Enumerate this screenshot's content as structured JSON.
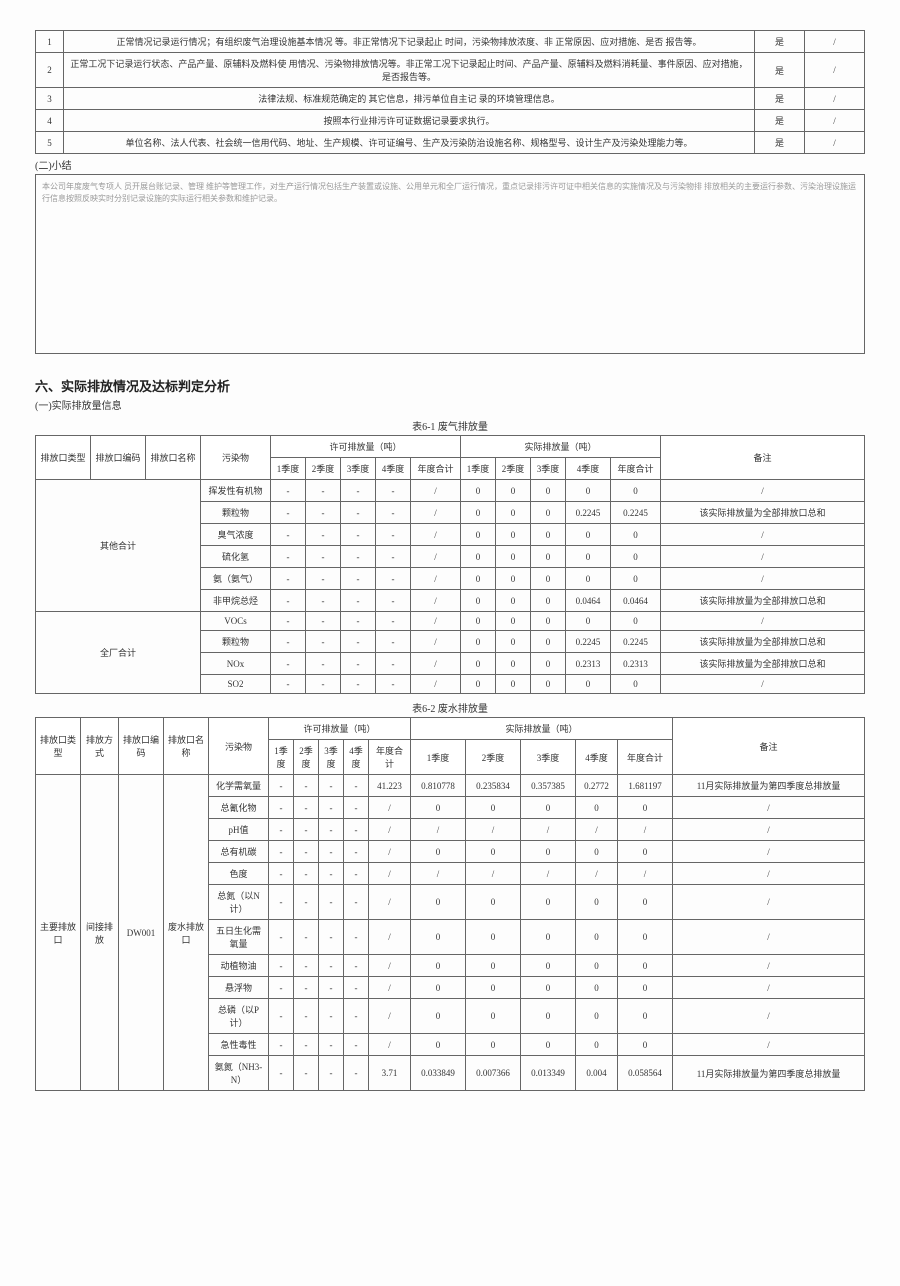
{
  "topTable": {
    "rows": [
      {
        "idx": "1",
        "desc": "正常情况记录运行情况；有组织废气治理设施基本情况 等。非正常情况下记录起止 时间，污染物排放浓度、非 正常原因、应对措施、是否 报告等。",
        "yn": "是",
        "slash": "/"
      },
      {
        "idx": "2",
        "desc": "正常工况下记录运行状态、产品产量、原辅料及燃料使 用情况、污染物排放情况等。非正常工况下记录起止时间、产品产量、原辅料及燃料消耗量、事件原因、应对措施，是否报告等。",
        "yn": "是",
        "slash": "/"
      },
      {
        "idx": "3",
        "desc": "法律法规、标准规范确定的 其它信息，排污单位自主记 录的环境管理信息。",
        "yn": "是",
        "slash": "/"
      },
      {
        "idx": "4",
        "desc": "按照本行业排污许可证数据记录要求执行。",
        "yn": "是",
        "slash": "/"
      },
      {
        "idx": "5",
        "desc": "单位名称、法人代表、社会统一信用代码、地址、生产规模、许可证编号、生产及污染防治设施名称、规格型号、设计生产及污染处理能力等。",
        "yn": "是",
        "slash": "/"
      }
    ]
  },
  "summary": {
    "label": "(二)小结",
    "text": "本公司年度废气专项人 员开展台账记录、管理    维护等管理工作，对生产运行情况包括生产装置或设施、公用单元和全厂运行情况，重点记录排污许可证中相关信息的实施情况及与污染物排    排放相关的主要运行参数、污染治理设施运行信息按照反映实时分别记录设施的实际运行相关参数和维护记录。"
  },
  "section6": {
    "title": "六、实际排放情况及达标判定分析",
    "sub": "(一)实际排放量信息"
  },
  "table61": {
    "caption": "表6-1 废气排放量",
    "header": {
      "c1": "排放口类型",
      "c2": "排放口编码",
      "c3": "排放口名称",
      "c4": "污染物",
      "g1": "许可排放量（吨）",
      "g2": "实际排放量（吨）",
      "remark": "备注",
      "q1": "1季度",
      "q2": "2季度",
      "q3": "3季度",
      "q4": "4季度",
      "yt": "年度合计"
    },
    "groups": [
      {
        "name": "其他合计",
        "rows": [
          {
            "pollutant": "挥发性有机物",
            "p": [
              "-",
              "-",
              "-",
              "-",
              "/"
            ],
            "a": [
              "0",
              "0",
              "0",
              "0",
              "0"
            ],
            "remark": "/"
          },
          {
            "pollutant": "颗粒物",
            "p": [
              "-",
              "-",
              "-",
              "-",
              "/"
            ],
            "a": [
              "0",
              "0",
              "0",
              "0.2245",
              "0.2245"
            ],
            "remark": "该实际排放量为全部排放口总和"
          },
          {
            "pollutant": "臭气浓度",
            "p": [
              "-",
              "-",
              "-",
              "-",
              "/"
            ],
            "a": [
              "0",
              "0",
              "0",
              "0",
              "0"
            ],
            "remark": "/"
          },
          {
            "pollutant": "硫化氢",
            "p": [
              "-",
              "-",
              "-",
              "-",
              "/"
            ],
            "a": [
              "0",
              "0",
              "0",
              "0",
              "0"
            ],
            "remark": "/"
          },
          {
            "pollutant": "氨（氨气）",
            "p": [
              "-",
              "-",
              "-",
              "-",
              "/"
            ],
            "a": [
              "0",
              "0",
              "0",
              "0",
              "0"
            ],
            "remark": "/"
          },
          {
            "pollutant": "非甲烷总烃",
            "p": [
              "-",
              "-",
              "-",
              "-",
              "/"
            ],
            "a": [
              "0",
              "0",
              "0",
              "0.0464",
              "0.0464"
            ],
            "remark": "该实际排放量为全部排放口总和"
          }
        ]
      },
      {
        "name": "全厂合计",
        "rows": [
          {
            "pollutant": "VOCs",
            "p": [
              "-",
              "-",
              "-",
              "-",
              "/"
            ],
            "a": [
              "0",
              "0",
              "0",
              "0",
              "0"
            ],
            "remark": "/"
          },
          {
            "pollutant": "颗粒物",
            "p": [
              "-",
              "-",
              "-",
              "-",
              "/"
            ],
            "a": [
              "0",
              "0",
              "0",
              "0.2245",
              "0.2245"
            ],
            "remark": "该实际排放量为全部排放口总和"
          },
          {
            "pollutant": "NOx",
            "p": [
              "-",
              "-",
              "-",
              "-",
              "/"
            ],
            "a": [
              "0",
              "0",
              "0",
              "0.2313",
              "0.2313"
            ],
            "remark": "该实际排放量为全部排放口总和"
          },
          {
            "pollutant": "SO2",
            "p": [
              "-",
              "-",
              "-",
              "-",
              "/"
            ],
            "a": [
              "0",
              "0",
              "0",
              "0",
              "0"
            ],
            "remark": "/"
          }
        ]
      }
    ]
  },
  "table62": {
    "caption": "表6-2 废水排放量",
    "header": {
      "c1": "排放口类型",
      "c2": "排放方式",
      "c3": "排放口编码",
      "c4": "排放口名称",
      "c5": "污染物",
      "g1": "许可排放量（吨）",
      "g2": "实际排放量（吨）",
      "remark": "备注",
      "q1": "1季度",
      "q2": "2季度",
      "q3": "3季度",
      "q4": "4季度",
      "yt": "年度合计"
    },
    "group": {
      "type": "主要排放口",
      "mode": "间接排放",
      "code": "DW001",
      "name": "废水排放口",
      "rows": [
        {
          "pollutant": "化学需氧量",
          "p": [
            "-",
            "-",
            "-",
            "-",
            "41.223"
          ],
          "a": [
            "0.810778",
            "0.235834",
            "0.357385",
            "0.2772",
            "1.681197"
          ],
          "remark": "11月实际排放量为第四季度总排放量"
        },
        {
          "pollutant": "总氰化物",
          "p": [
            "-",
            "-",
            "-",
            "-",
            "/"
          ],
          "a": [
            "0",
            "0",
            "0",
            "0",
            "0"
          ],
          "remark": "/"
        },
        {
          "pollutant": "pH值",
          "p": [
            "-",
            "-",
            "-",
            "-",
            "/"
          ],
          "a": [
            "/",
            "/",
            "/",
            "/",
            "/"
          ],
          "remark": "/"
        },
        {
          "pollutant": "总有机碳",
          "p": [
            "-",
            "-",
            "-",
            "-",
            "/"
          ],
          "a": [
            "0",
            "0",
            "0",
            "0",
            "0"
          ],
          "remark": "/"
        },
        {
          "pollutant": "色度",
          "p": [
            "-",
            "-",
            "-",
            "-",
            "/"
          ],
          "a": [
            "/",
            "/",
            "/",
            "/",
            "/"
          ],
          "remark": "/"
        },
        {
          "pollutant": "总氮（以N计）",
          "p": [
            "-",
            "-",
            "-",
            "-",
            "/"
          ],
          "a": [
            "0",
            "0",
            "0",
            "0",
            "0"
          ],
          "remark": "/"
        },
        {
          "pollutant": "五日生化需氧量",
          "p": [
            "-",
            "-",
            "-",
            "-",
            "/"
          ],
          "a": [
            "0",
            "0",
            "0",
            "0",
            "0"
          ],
          "remark": "/"
        },
        {
          "pollutant": "动植物油",
          "p": [
            "-",
            "-",
            "-",
            "-",
            "/"
          ],
          "a": [
            "0",
            "0",
            "0",
            "0",
            "0"
          ],
          "remark": "/"
        },
        {
          "pollutant": "悬浮物",
          "p": [
            "-",
            "-",
            "-",
            "-",
            "/"
          ],
          "a": [
            "0",
            "0",
            "0",
            "0",
            "0"
          ],
          "remark": "/"
        },
        {
          "pollutant": "总磷（以P计）",
          "p": [
            "-",
            "-",
            "-",
            "-",
            "/"
          ],
          "a": [
            "0",
            "0",
            "0",
            "0",
            "0"
          ],
          "remark": "/"
        },
        {
          "pollutant": "急性毒性",
          "p": [
            "-",
            "-",
            "-",
            "-",
            "/"
          ],
          "a": [
            "0",
            "0",
            "0",
            "0",
            "0"
          ],
          "remark": "/"
        },
        {
          "pollutant": "氨氮（NH3-N）",
          "p": [
            "-",
            "-",
            "-",
            "-",
            "3.71"
          ],
          "a": [
            "0.033849",
            "0.007366",
            "0.013349",
            "0.004",
            "0.058564"
          ],
          "remark": "11月实际排放量为第四季度总排放量"
        }
      ]
    }
  }
}
